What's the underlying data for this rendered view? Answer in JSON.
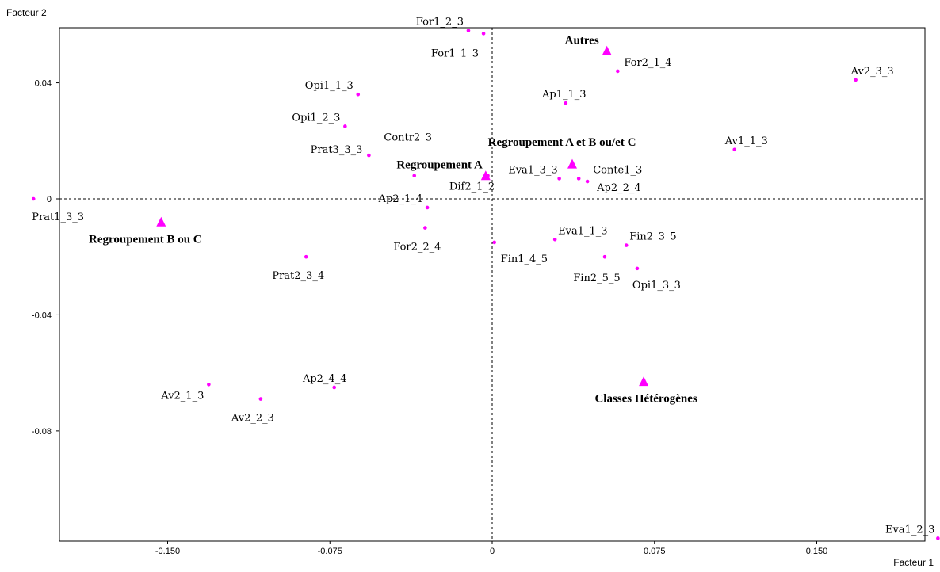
{
  "chart_data": {
    "type": "scatter",
    "title": "",
    "xlabel": "Facteur 1",
    "ylabel": "Facteur 2",
    "xlim": [
      -0.2,
      0.2
    ],
    "ylim": [
      -0.118,
      0.059
    ],
    "x_ticks": [
      -0.15,
      -0.075,
      0,
      0.075,
      0.15
    ],
    "x_tick_labels": [
      "-0.150",
      "-0.075",
      "0",
      "0.075",
      "0.150"
    ],
    "y_ticks": [
      0.04,
      0,
      -0.04,
      -0.08
    ],
    "y_tick_labels": [
      "0.04",
      "0",
      "-0.04",
      "-0.08"
    ],
    "grid": false,
    "reference_lines": "dashed lines at x=0 and y=0",
    "point_color": "#ff00ff",
    "series": [
      {
        "marker": "dot",
        "points": [
          {
            "label": "For1_2_3",
            "x": -0.011,
            "y": 0.058
          },
          {
            "label": "For1_1_3",
            "x": -0.004,
            "y": 0.057
          },
          {
            "label": "For2_1_4",
            "x": 0.058,
            "y": 0.044
          },
          {
            "label": "Av2_3_3",
            "x": 0.168,
            "y": 0.041
          },
          {
            "label": "Opi1_1_3",
            "x": -0.062,
            "y": 0.036
          },
          {
            "label": "Ap1_1_3",
            "x": 0.034,
            "y": 0.033
          },
          {
            "label": "Opi1_2_3",
            "x": -0.068,
            "y": 0.025
          },
          {
            "label": "Contr2_3",
            "x": -0.036,
            "y": 0.008
          },
          {
            "label": "Prat3_3_3",
            "x": -0.057,
            "y": 0.015
          },
          {
            "label": "Av1_1_3",
            "x": 0.112,
            "y": 0.017
          },
          {
            "label": "Eva1_3_3",
            "x": 0.031,
            "y": 0.007
          },
          {
            "label": "Conte1_3",
            "x": 0.04,
            "y": 0.007
          },
          {
            "label": "Ap2_2_4",
            "x": 0.044,
            "y": 0.006
          },
          {
            "label": "Dif2_1_2",
            "x": -0.002,
            "y": 0.008
          },
          {
            "label": "Prat1_3_3",
            "x": -0.212,
            "y": 0.0
          },
          {
            "label": "Ap2_1_4",
            "x": -0.03,
            "y": -0.003
          },
          {
            "label": "For2_2_4",
            "x": -0.031,
            "y": -0.01
          },
          {
            "label": "Fin1_4_5",
            "x": 0.001,
            "y": -0.015
          },
          {
            "label": "Eva1_1_3",
            "x": 0.029,
            "y": -0.014
          },
          {
            "label": "Fin2_3_5",
            "x": 0.062,
            "y": -0.016
          },
          {
            "label": "Fin2_5_5",
            "x": 0.052,
            "y": -0.02
          },
          {
            "label": "Opi1_3_3",
            "x": 0.067,
            "y": -0.024
          },
          {
            "label": "Prat2_3_4",
            "x": -0.086,
            "y": -0.02
          },
          {
            "label": "Av2_1_3",
            "x": -0.131,
            "y": -0.064
          },
          {
            "label": "Av2_2_3",
            "x": -0.107,
            "y": -0.069
          },
          {
            "label": "Ap2_4_4",
            "x": -0.073,
            "y": -0.065
          },
          {
            "label": "Eva1_2_3",
            "x": 0.206,
            "y": -0.117
          }
        ]
      },
      {
        "marker": "triangle",
        "points": [
          {
            "label": "Autres",
            "x": 0.053,
            "y": 0.051
          },
          {
            "label": "Regroupement A et B ou/et C",
            "x": 0.037,
            "y": 0.012
          },
          {
            "label": "Regroupement A",
            "x": -0.003,
            "y": 0.008
          },
          {
            "label": "Regroupement B ou C",
            "x": -0.153,
            "y": -0.008
          },
          {
            "label": "Classes Hétérogènes",
            "x": 0.07,
            "y": -0.063
          }
        ]
      }
    ]
  }
}
